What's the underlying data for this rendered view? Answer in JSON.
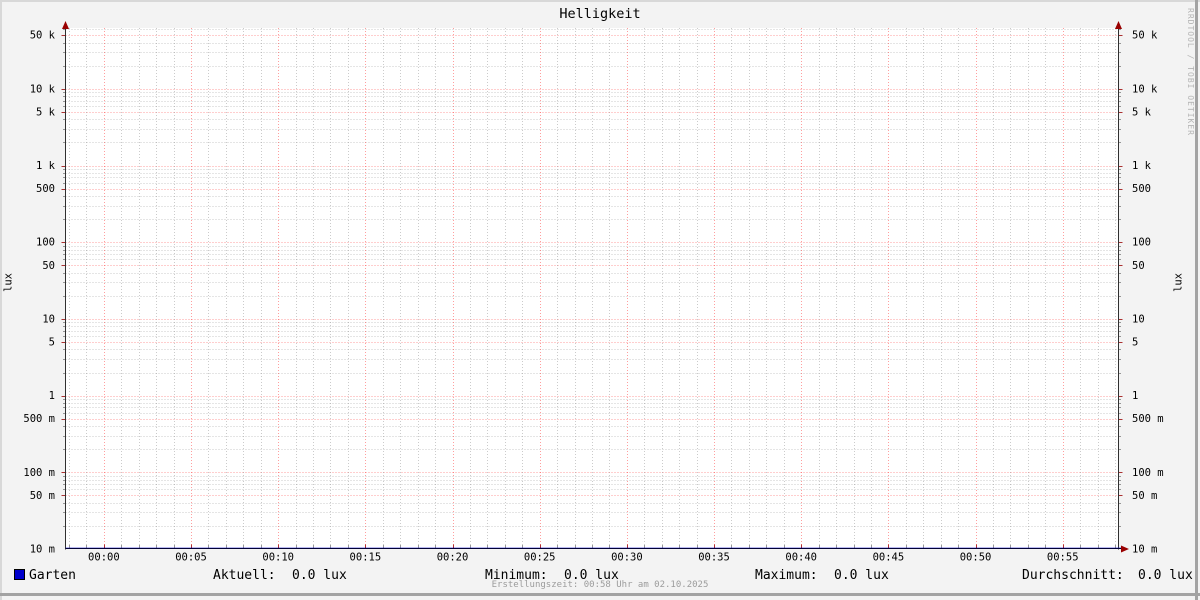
{
  "title": "Helligkeit",
  "watermark": "RRDTOOL / TOBI OETIKER",
  "y_axis": {
    "unit_left": "lux",
    "unit_right": "lux"
  },
  "legend": {
    "series_label": "Garten",
    "series_color": "#0000cc",
    "stats": [
      {
        "label": "Aktuell:",
        "value": "0.0 lux"
      },
      {
        "label": "Minimum:",
        "value": "0.0 lux"
      },
      {
        "label": "Maximum:",
        "value": "0.0 lux"
      },
      {
        "label": "Durchschnitt:",
        "value": "0.0 lux"
      }
    ]
  },
  "footer": {
    "creation_text": "Erstellungszeit: 00:58 Uhr am 02.10.2025"
  },
  "chart_data": {
    "type": "line",
    "title": "Helligkeit",
    "xlabel": "",
    "ylabel": "lux",
    "y_scale": "log",
    "ylim": [
      0.01,
      60000
    ],
    "grid": true,
    "legend_position": "bottom",
    "x_ticks": [
      {
        "minute": 0,
        "label": "00:00"
      },
      {
        "minute": 5,
        "label": "00:05"
      },
      {
        "minute": 10,
        "label": "00:10"
      },
      {
        "minute": 15,
        "label": "00:15"
      },
      {
        "minute": 20,
        "label": "00:20"
      },
      {
        "minute": 25,
        "label": "00:25"
      },
      {
        "minute": 30,
        "label": "00:30"
      },
      {
        "minute": 35,
        "label": "00:35"
      },
      {
        "minute": 40,
        "label": "00:40"
      },
      {
        "minute": 45,
        "label": "00:45"
      },
      {
        "minute": 50,
        "label": "00:50"
      },
      {
        "minute": 55,
        "label": "00:55"
      }
    ],
    "x_range": {
      "lead_minutes": 2.2,
      "end_minutes": 58.2,
      "minor_tick_every": 1,
      "major_tick_every": 5
    },
    "y_ticks": [
      {
        "value": 0.01,
        "label": "10 m"
      },
      {
        "value": 0.05,
        "label": "50 m"
      },
      {
        "value": 0.1,
        "label": "100 m"
      },
      {
        "value": 0.5,
        "label": "500 m"
      },
      {
        "value": 1,
        "label": "1"
      },
      {
        "value": 5,
        "label": "5"
      },
      {
        "value": 10,
        "label": "10"
      },
      {
        "value": 50,
        "label": "50"
      },
      {
        "value": 100,
        "label": "100"
      },
      {
        "value": 500,
        "label": "500"
      },
      {
        "value": 1000,
        "label": "1 k"
      },
      {
        "value": 5000,
        "label": "5 k"
      },
      {
        "value": 10000,
        "label": "10 k"
      },
      {
        "value": 50000,
        "label": "50 k"
      }
    ],
    "series": [
      {
        "name": "Garten",
        "color": "#0000cc",
        "constant_value": 0.0,
        "aktuell": 0.0,
        "minimum": 0.0,
        "maximum": 0.0,
        "durchschnitt": 0.0,
        "unit": "lux"
      }
    ],
    "colors": {
      "background": "#f3f3f3",
      "canvas": "#ffffff",
      "major_grid": "#ff0000",
      "minor_grid": "#8c8c8c",
      "axis": "#303030",
      "x_axis_line": "#000000",
      "arrow": "#990000",
      "font": "#000000"
    }
  }
}
